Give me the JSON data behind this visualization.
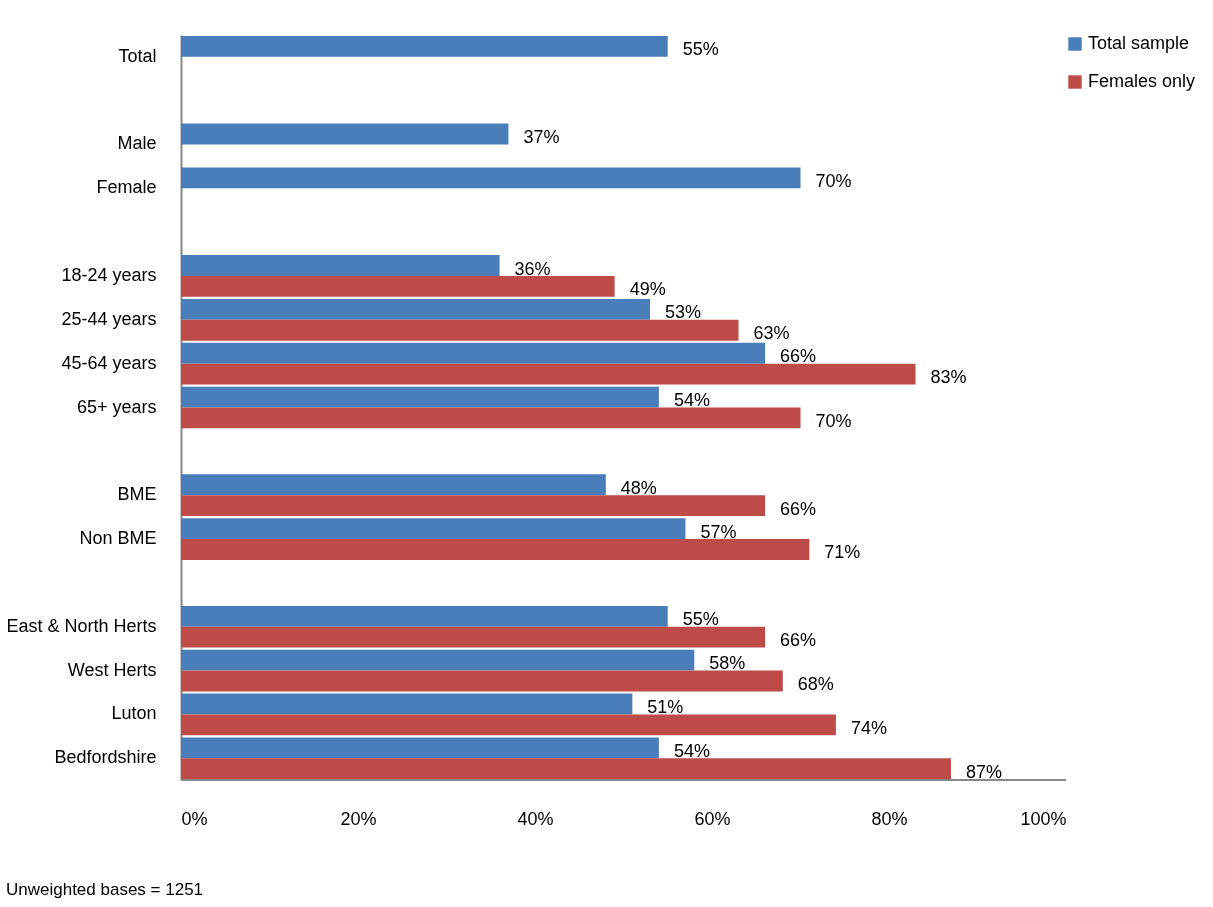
{
  "chart_data": {
    "type": "bar",
    "orientation": "horizontal",
    "categories": [
      "Total",
      null,
      "Male",
      "Female",
      null,
      "18-24 years",
      "25-44 years",
      "45-64 years",
      "65+ years",
      null,
      "BME",
      "Non BME",
      null,
      "East & North Herts",
      "West Herts",
      "Luton",
      "Bedfordshire"
    ],
    "series": [
      {
        "name": "Total sample",
        "color": "#4a7ebb",
        "values": [
          55,
          null,
          37,
          70,
          null,
          36,
          53,
          66,
          54,
          null,
          48,
          57,
          null,
          55,
          58,
          51,
          54
        ],
        "value_labels": [
          "55%",
          null,
          "37%",
          "70%",
          null,
          "36%",
          "53%",
          "66%",
          "54%",
          null,
          "48%",
          "57%",
          null,
          "55%",
          "58%",
          "51%",
          "54%"
        ]
      },
      {
        "name": "Females only",
        "color": "#be4b48",
        "values": [
          null,
          null,
          null,
          null,
          null,
          49,
          63,
          83,
          70,
          null,
          66,
          71,
          null,
          66,
          68,
          74,
          87
        ],
        "value_labels": [
          null,
          null,
          null,
          null,
          null,
          "49%",
          "63%",
          "83%",
          "70%",
          null,
          "66%",
          "71%",
          null,
          "66%",
          "68%",
          "74%",
          "87%"
        ]
      }
    ],
    "xlim": [
      0,
      100
    ],
    "xticks": [
      {
        "value": 0,
        "label": "0%"
      },
      {
        "value": 20,
        "label": "20%"
      },
      {
        "value": 40,
        "label": "40%"
      },
      {
        "value": 60,
        "label": "60%"
      },
      {
        "value": 80,
        "label": "80%"
      },
      {
        "value": 100,
        "label": "100%"
      }
    ],
    "grid": false,
    "legend": "right",
    "annotations": [
      "Unweighted bases = 1251"
    ]
  }
}
